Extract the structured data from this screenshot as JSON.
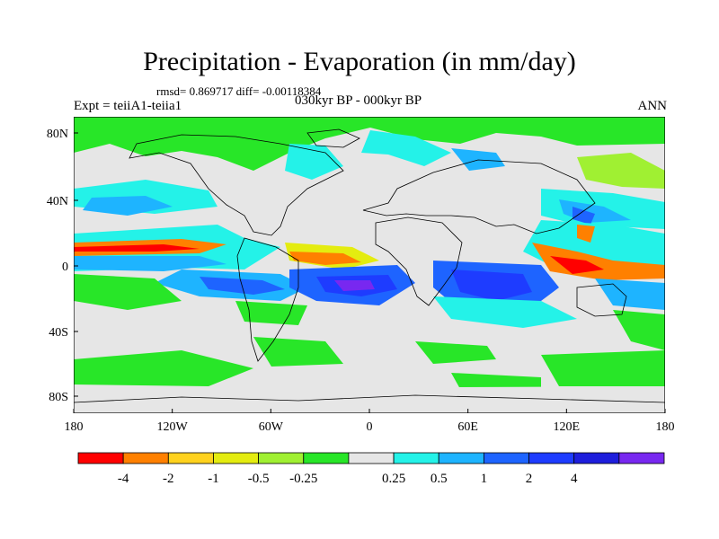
{
  "title": "Precipitation - Evaporation (in mm/day)",
  "stats": "rmsd= 0.869717 diff= -0.00118384",
  "experiment": "Expt = teiiA1-teiia1",
  "period": "030kyr BP - 000kyr BP",
  "season": "ANN",
  "axes": {
    "lat_ticks": [
      "80N",
      "40N",
      "0",
      "40S",
      "80S"
    ],
    "lon_ticks": [
      "180",
      "120W",
      "60W",
      "0",
      "60E",
      "120E",
      "180"
    ]
  },
  "colorbar": {
    "colors": [
      "#ff0000",
      "#ff8000",
      "#ffd21e",
      "#e4ec10",
      "#a0f032",
      "#28e628",
      "#e6e6e6",
      "#24f2e8",
      "#1eb4ff",
      "#1e64ff",
      "#1e3cff",
      "#1e1edc",
      "#7828f0"
    ],
    "labels": [
      "-4",
      "-2",
      "-1",
      "-0.5",
      "-0.25",
      "0.25",
      "0.5",
      "1",
      "2",
      "4"
    ]
  },
  "palette": {
    "neutral": "#e6e6e6",
    "wet_light": "#24f2e8",
    "wet_mid": "#1eb4ff",
    "wet_strong": "#1e3cff",
    "wet_max": "#7828f0",
    "dry_light": "#28e628",
    "dry_mid": "#a0f032",
    "dry_yellow": "#e4ec10",
    "dry_orange": "#ff8000",
    "dry_max": "#ff0000"
  }
}
